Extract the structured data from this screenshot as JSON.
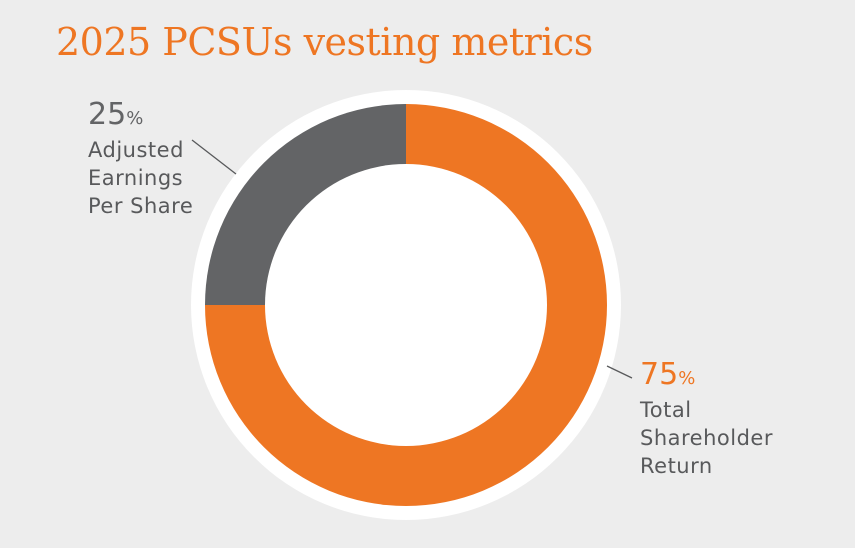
{
  "chart_data": {
    "type": "pie",
    "title": "2025 PCSUs vesting metrics",
    "series": [
      {
        "name": "Adjusted Earnings Per Share",
        "value": 25,
        "color": "#636466",
        "label_lines": [
          "Adjusted",
          "Earnings",
          "Per Share"
        ]
      },
      {
        "name": "Total Shareholder Return",
        "value": 75,
        "color": "#ee7623",
        "label_lines": [
          "Total",
          "Shareholder",
          "Return"
        ]
      }
    ],
    "percent_symbol": "%",
    "donut": true
  }
}
